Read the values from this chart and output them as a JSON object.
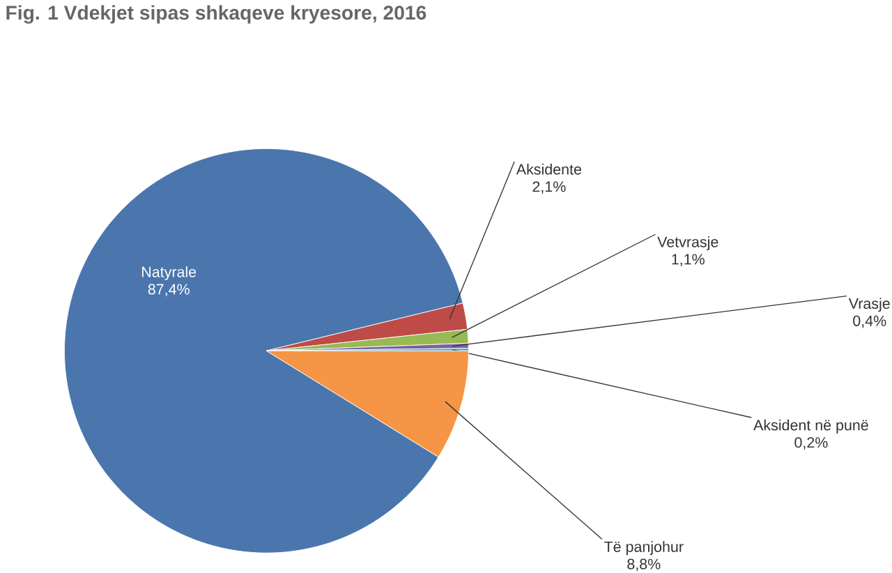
{
  "chart_data": {
    "type": "pie",
    "title": "Fig. 1 Vdekjet sipas shkaqeve kryesore, 2016",
    "categories": [
      "Natyrale",
      "Aksidente",
      "Vetvrasje",
      "Vrasje",
      "Aksident në punë",
      "Të panjohur"
    ],
    "values": [
      87.4,
      2.1,
      1.1,
      0.4,
      0.2,
      8.8
    ],
    "value_labels": [
      "87,4%",
      "2,1%",
      "1,1%",
      "0,4%",
      "0,2%",
      "8,8%"
    ],
    "colors": [
      "#4a76ad",
      "#be4b48",
      "#98b954",
      "#7d60a0",
      "#46aac4",
      "#f59545"
    ]
  }
}
